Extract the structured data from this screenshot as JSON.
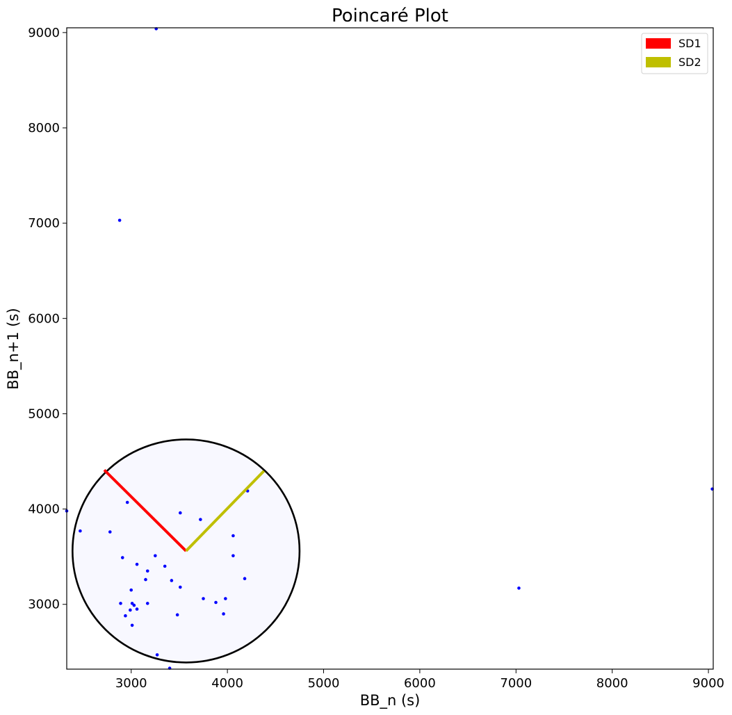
{
  "chart_data": {
    "type": "scatter",
    "title": "Poincaré Plot",
    "xlabel": "BB_n (s)",
    "ylabel": "BB_n+1 (s)",
    "xlim": [
      2330,
      9050
    ],
    "ylim": [
      2320,
      9050
    ],
    "x_ticks": [
      3000,
      4000,
      5000,
      6000,
      7000,
      8000,
      9000
    ],
    "y_ticks": [
      3000,
      4000,
      5000,
      6000,
      7000,
      8000,
      9000
    ],
    "grid": false,
    "legend_position": "top-right",
    "series": [
      {
        "name": "",
        "color": "#0000ff",
        "points": [
          [
            3260,
            9040
          ],
          [
            2880,
            7030
          ],
          [
            9040,
            4210
          ],
          [
            7030,
            3170
          ],
          [
            2330,
            3980
          ],
          [
            2470,
            3770
          ],
          [
            2780,
            3760
          ],
          [
            2960,
            4070
          ],
          [
            2910,
            3490
          ],
          [
            3060,
            3420
          ],
          [
            3170,
            3350
          ],
          [
            3150,
            3260
          ],
          [
            3250,
            3510
          ],
          [
            3350,
            3400
          ],
          [
            3420,
            3250
          ],
          [
            3510,
            3180
          ],
          [
            3000,
            3150
          ],
          [
            2890,
            3010
          ],
          [
            3010,
            3010
          ],
          [
            3030,
            2990
          ],
          [
            2990,
            2940
          ],
          [
            3060,
            2950
          ],
          [
            2940,
            2880
          ],
          [
            3010,
            2780
          ],
          [
            3170,
            3010
          ],
          [
            3480,
            2890
          ],
          [
            3510,
            3960
          ],
          [
            3720,
            3890
          ],
          [
            3750,
            3060
          ],
          [
            3880,
            3020
          ],
          [
            3960,
            2900
          ],
          [
            3980,
            3060
          ],
          [
            4060,
            3720
          ],
          [
            4060,
            3510
          ],
          [
            4180,
            3270
          ],
          [
            4210,
            4190
          ],
          [
            3270,
            2470
          ],
          [
            3400,
            2330
          ]
        ]
      }
    ],
    "ellipse": {
      "center": [
        3570,
        3560
      ],
      "x_radius": 1180,
      "y_radius": 1170,
      "fill": "#f8f8ff",
      "edge_color": "#000000"
    },
    "vectors": [
      {
        "name": "SD1",
        "color": "#ff0000",
        "from": [
          3570,
          3560
        ],
        "to": [
          2720,
          4410
        ]
      },
      {
        "name": "SD2",
        "color": "#bfbf00",
        "from": [
          3570,
          3560
        ],
        "to": [
          4380,
          4400
        ]
      }
    ]
  }
}
